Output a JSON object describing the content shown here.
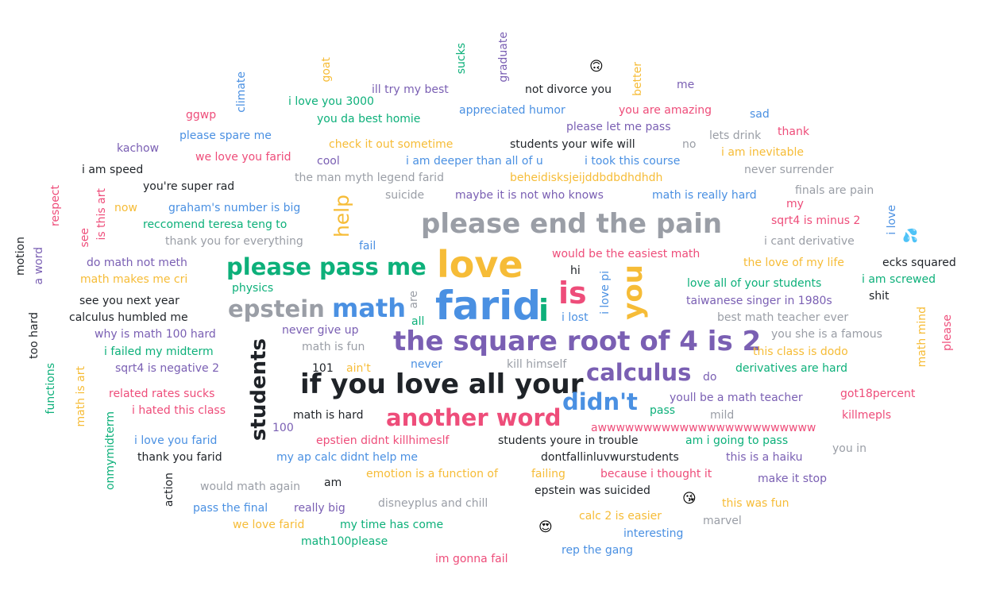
{
  "colors": {
    "purple": "#7a5fb3",
    "blue": "#4a90e2",
    "green": "#0db07a",
    "pink": "#ee4d7a",
    "yellow": "#f6bc37",
    "gray": "#9a9ea6",
    "black": "#1f2328"
  },
  "emojis": [
    {
      "name": "upside-down-face-emoji",
      "glyph": "🙃"
    },
    {
      "name": "sweat-droplets-emoji",
      "glyph": "💦"
    },
    {
      "name": "kissing-face-emoji",
      "glyph": "😘"
    },
    {
      "name": "heart-eyes-emoji",
      "glyph": "😍"
    }
  ],
  "words": [
    {
      "text": "farid",
      "color": "blue"
    },
    {
      "text": "love",
      "color": "yellow"
    },
    {
      "text": "is",
      "color": "pink"
    },
    {
      "text": "i",
      "color": "green"
    },
    {
      "text": "you",
      "color": "yellow"
    },
    {
      "text": "please end the pain",
      "color": "gray"
    },
    {
      "text": "the square root of 4 is 2",
      "color": "purple"
    },
    {
      "text": "if you love all your",
      "color": "black"
    },
    {
      "text": "please pass me",
      "color": "green"
    },
    {
      "text": "math",
      "color": "blue"
    },
    {
      "text": "epstein",
      "color": "gray"
    },
    {
      "text": "calculus",
      "color": "purple"
    },
    {
      "text": "another word",
      "color": "pink"
    },
    {
      "text": "didn't",
      "color": "blue"
    },
    {
      "text": "students",
      "color": "black"
    },
    {
      "text": "help",
      "color": "yellow"
    },
    {
      "text": "ill try my best",
      "color": "purple"
    },
    {
      "text": "not divorce you",
      "color": "black"
    },
    {
      "text": "me",
      "color": "purple"
    },
    {
      "text": "i love you 3000",
      "color": "green"
    },
    {
      "text": "appreciated humor",
      "color": "blue"
    },
    {
      "text": "you are amazing",
      "color": "pink"
    },
    {
      "text": "ggwp",
      "color": "pink"
    },
    {
      "text": "you da best homie",
      "color": "green"
    },
    {
      "text": "sad",
      "color": "blue"
    },
    {
      "text": "please let me pass",
      "color": "purple"
    },
    {
      "text": "please spare me",
      "color": "blue"
    },
    {
      "text": "lets drink",
      "color": "gray"
    },
    {
      "text": "thank",
      "color": "pink"
    },
    {
      "text": "kachow",
      "color": "purple"
    },
    {
      "text": "check it out sometime",
      "color": "yellow"
    },
    {
      "text": "students your wife will",
      "color": "black"
    },
    {
      "text": "no",
      "color": "gray"
    },
    {
      "text": "we love you farid",
      "color": "pink"
    },
    {
      "text": "i am inevitable",
      "color": "yellow"
    },
    {
      "text": "cool",
      "color": "purple"
    },
    {
      "text": "i am deeper than all of u",
      "color": "blue"
    },
    {
      "text": "i took this course",
      "color": "blue"
    },
    {
      "text": "i am speed",
      "color": "black"
    },
    {
      "text": "never surrender",
      "color": "gray"
    },
    {
      "text": "the man myth legend farid",
      "color": "gray"
    },
    {
      "text": "beheidisksjeijddbdbdhdhdh",
      "color": "yellow"
    },
    {
      "text": "you're super rad",
      "color": "black"
    },
    {
      "text": "finals are pain",
      "color": "gray"
    },
    {
      "text": "suicide",
      "color": "gray"
    },
    {
      "text": "maybe it is not who knows",
      "color": "purple"
    },
    {
      "text": "math is really hard",
      "color": "blue"
    },
    {
      "text": "my",
      "color": "pink"
    },
    {
      "text": "now",
      "color": "yellow"
    },
    {
      "text": "graham's number is big",
      "color": "blue"
    },
    {
      "text": "sqrt4 is minus 2",
      "color": "pink"
    },
    {
      "text": "reccomend teresa teng to",
      "color": "green"
    },
    {
      "text": "thank you for everything",
      "color": "gray"
    },
    {
      "text": "fail",
      "color": "blue"
    },
    {
      "text": "i cant derivative",
      "color": "gray"
    },
    {
      "text": "would be the easiest math",
      "color": "pink"
    },
    {
      "text": "do math not meth",
      "color": "purple"
    },
    {
      "text": "the love of my life",
      "color": "yellow"
    },
    {
      "text": "ecks squared",
      "color": "black"
    },
    {
      "text": "hi",
      "color": "black"
    },
    {
      "text": "math makes me cri",
      "color": "yellow"
    },
    {
      "text": "i am screwed",
      "color": "green"
    },
    {
      "text": "love all of your students",
      "color": "green"
    },
    {
      "text": "physics",
      "color": "green"
    },
    {
      "text": "shit",
      "color": "black"
    },
    {
      "text": "see you next year",
      "color": "black"
    },
    {
      "text": "taiwanese singer in 1980s",
      "color": "purple"
    },
    {
      "text": "calculus humbled me",
      "color": "black"
    },
    {
      "text": "i lost",
      "color": "blue"
    },
    {
      "text": "best math teacher ever",
      "color": "gray"
    },
    {
      "text": "all",
      "color": "green"
    },
    {
      "text": "why is math 100 hard",
      "color": "purple"
    },
    {
      "text": "never give up",
      "color": "purple"
    },
    {
      "text": "you she is a famous",
      "color": "gray"
    },
    {
      "text": "i failed my midterm",
      "color": "green"
    },
    {
      "text": "math is fun",
      "color": "gray"
    },
    {
      "text": "this class is dodo",
      "color": "yellow"
    },
    {
      "text": "sqrt4 is negative 2",
      "color": "purple"
    },
    {
      "text": "101",
      "color": "black"
    },
    {
      "text": "ain't",
      "color": "yellow"
    },
    {
      "text": "never",
      "color": "blue"
    },
    {
      "text": "kill himself",
      "color": "gray"
    },
    {
      "text": "derivatives are hard",
      "color": "green"
    },
    {
      "text": "do",
      "color": "purple"
    },
    {
      "text": "related rates sucks",
      "color": "pink"
    },
    {
      "text": "got18percent",
      "color": "pink"
    },
    {
      "text": "youll be a math teacher",
      "color": "purple"
    },
    {
      "text": "i hated this class",
      "color": "pink"
    },
    {
      "text": "pass",
      "color": "green"
    },
    {
      "text": "mild",
      "color": "gray"
    },
    {
      "text": "killmepls",
      "color": "pink"
    },
    {
      "text": "math is hard",
      "color": "black"
    },
    {
      "text": "100",
      "color": "purple"
    },
    {
      "text": "awwwwwwwwwwwwwwwwwwwwwwww",
      "color": "pink"
    },
    {
      "text": "i love you farid",
      "color": "blue"
    },
    {
      "text": "epstien didnt killhimeslf",
      "color": "pink"
    },
    {
      "text": "students youre in trouble",
      "color": "black"
    },
    {
      "text": "am i going to pass",
      "color": "green"
    },
    {
      "text": "you in",
      "color": "gray"
    },
    {
      "text": "thank you farid",
      "color": "black"
    },
    {
      "text": "my ap calc didnt help me",
      "color": "blue"
    },
    {
      "text": "dontfallinluvwurstudents",
      "color": "black"
    },
    {
      "text": "this is a haiku",
      "color": "purple"
    },
    {
      "text": "emotion is a function of",
      "color": "yellow"
    },
    {
      "text": "failing",
      "color": "yellow"
    },
    {
      "text": "because i thought it",
      "color": "pink"
    },
    {
      "text": "make it stop",
      "color": "purple"
    },
    {
      "text": "would math again",
      "color": "gray"
    },
    {
      "text": "am",
      "color": "black"
    },
    {
      "text": "epstein was suicided",
      "color": "black"
    },
    {
      "text": "this was fun",
      "color": "yellow"
    },
    {
      "text": "pass the final",
      "color": "blue"
    },
    {
      "text": "really big",
      "color": "purple"
    },
    {
      "text": "disneyplus and chill",
      "color": "gray"
    },
    {
      "text": "calc 2 is easier",
      "color": "yellow"
    },
    {
      "text": "marvel",
      "color": "gray"
    },
    {
      "text": "we love farid",
      "color": "yellow"
    },
    {
      "text": "my time has come",
      "color": "green"
    },
    {
      "text": "interesting",
      "color": "blue"
    },
    {
      "text": "math100please",
      "color": "green"
    },
    {
      "text": "rep the gang",
      "color": "blue"
    },
    {
      "text": "im gonna fail",
      "color": "pink"
    },
    {
      "text": "goat",
      "color": "yellow"
    },
    {
      "text": "climate",
      "color": "blue"
    },
    {
      "text": "sucks",
      "color": "green"
    },
    {
      "text": "graduate",
      "color": "purple"
    },
    {
      "text": "better",
      "color": "yellow"
    },
    {
      "text": "respect",
      "color": "pink"
    },
    {
      "text": "see",
      "color": "pink"
    },
    {
      "text": "is this art",
      "color": "pink"
    },
    {
      "text": "motion",
      "color": "black"
    },
    {
      "text": "a word",
      "color": "purple"
    },
    {
      "text": "too hard",
      "color": "black"
    },
    {
      "text": "functions",
      "color": "green"
    },
    {
      "text": "math is art",
      "color": "yellow"
    },
    {
      "text": "onmymidterm",
      "color": "green"
    },
    {
      "text": "action",
      "color": "black"
    },
    {
      "text": "are",
      "color": "gray"
    },
    {
      "text": "i love pi",
      "color": "blue"
    },
    {
      "text": "i love",
      "color": "blue"
    },
    {
      "text": "math mind",
      "color": "yellow"
    },
    {
      "text": "please",
      "color": "pink"
    }
  ]
}
